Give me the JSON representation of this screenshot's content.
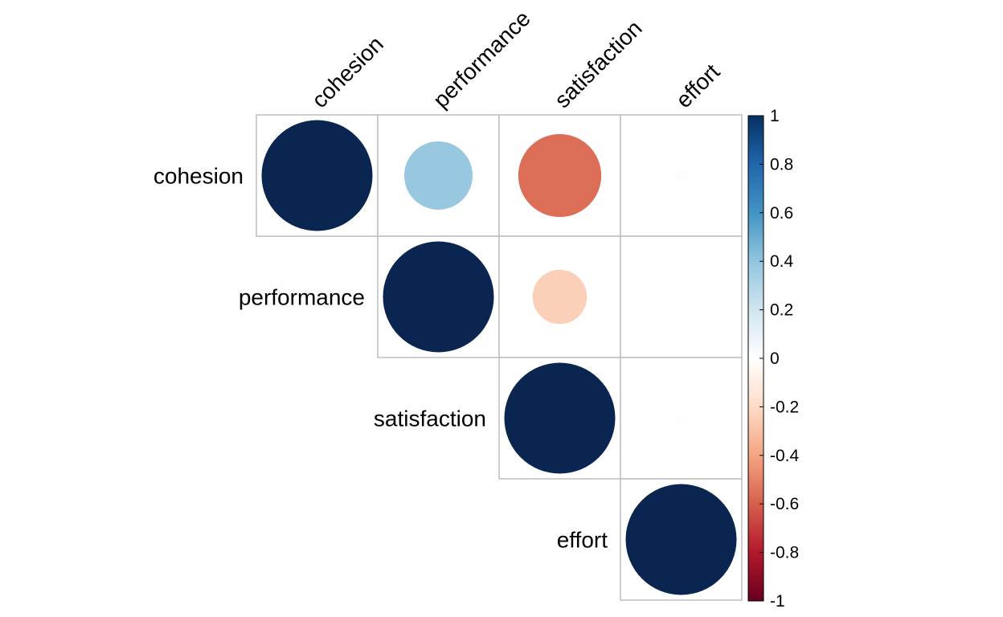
{
  "chart_data": {
    "type": "heatmap",
    "subtype": "correlation-circles-upper-triangle",
    "variables": [
      "cohesion",
      "performance",
      "satisfaction",
      "effort"
    ],
    "matrix": [
      [
        1.0,
        0.38,
        -0.56,
        -0.01
      ],
      [
        null,
        1.0,
        -0.24,
        0.0
      ],
      [
        null,
        null,
        1.0,
        -0.005
      ],
      [
        null,
        null,
        null,
        1.0
      ]
    ],
    "colorbar": {
      "range": [
        -1,
        1
      ],
      "ticks": [
        "1",
        "0.8",
        "0.6",
        "0.4",
        "0.2",
        "0",
        "-0.2",
        "-0.4",
        "-0.6",
        "-0.8",
        "-1"
      ],
      "tick_values": [
        1,
        0.8,
        0.6,
        0.4,
        0.2,
        0,
        -0.2,
        -0.4,
        -0.6,
        -0.8,
        -1
      ],
      "stops": [
        {
          "value": -1,
          "color": "#67001F"
        },
        {
          "value": -0.8,
          "color": "#B2182B"
        },
        {
          "value": -0.6,
          "color": "#D6604D"
        },
        {
          "value": -0.4,
          "color": "#F4A582"
        },
        {
          "value": -0.2,
          "color": "#FDDBC7"
        },
        {
          "value": 0,
          "color": "#FFFFFF"
        },
        {
          "value": 0.2,
          "color": "#D1E5F0"
        },
        {
          "value": 0.4,
          "color": "#92C5DE"
        },
        {
          "value": 0.6,
          "color": "#4393C3"
        },
        {
          "value": 0.8,
          "color": "#2166AC"
        },
        {
          "value": 1,
          "color": "#053061"
        }
      ]
    },
    "grid": true,
    "grid_color": "#BEBEBE",
    "diagonal_color": "#0A2550"
  }
}
